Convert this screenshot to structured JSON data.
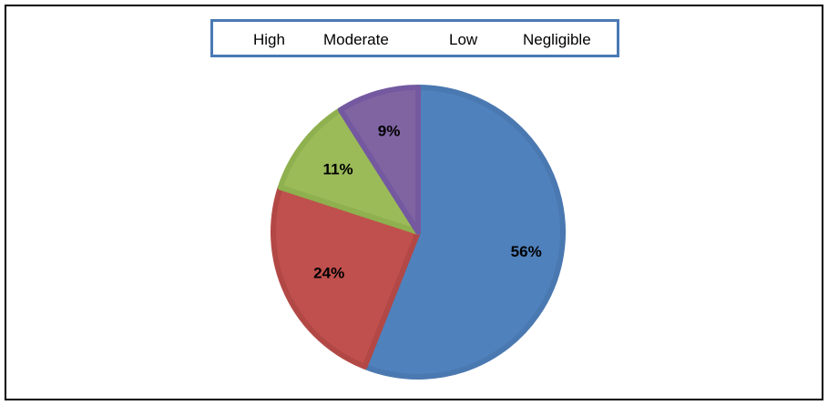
{
  "chart_data": {
    "type": "pie",
    "title": "",
    "legend_position": "top",
    "categories": [
      "High",
      "Moderate",
      "Low",
      "Negligible"
    ],
    "values": [
      56,
      24,
      11,
      9
    ],
    "labels": [
      "56%",
      "24%",
      "11%",
      "9%"
    ],
    "colors": [
      "#4f81bd",
      "#c0504d",
      "#9bbb59",
      "#8064a2"
    ],
    "border_colors": [
      "#4a78b0",
      "#b24845",
      "#8fb04e",
      "#7459a0"
    ]
  }
}
